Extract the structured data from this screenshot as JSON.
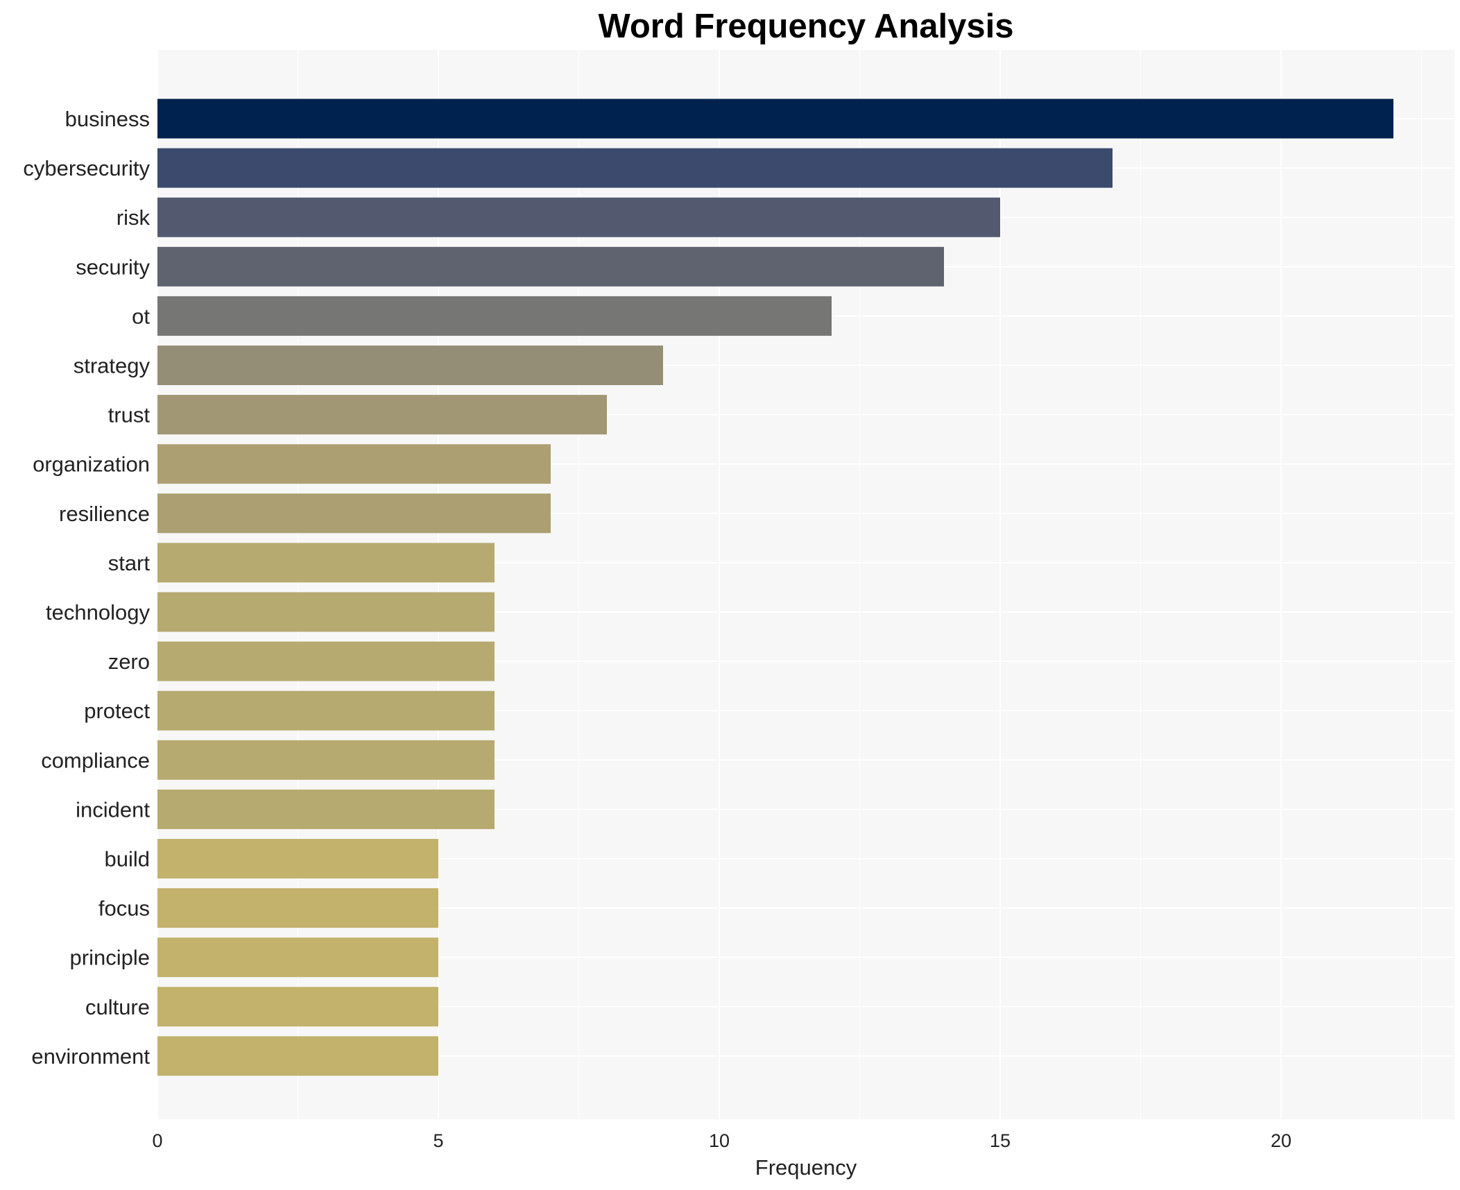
{
  "chart_data": {
    "type": "bar",
    "orientation": "horizontal",
    "title": "Word Frequency Analysis",
    "xlabel": "Frequency",
    "ylabel": "",
    "xlim": [
      0,
      23
    ],
    "xticks": [
      0,
      5,
      10,
      15,
      20
    ],
    "grid": true,
    "categories": [
      "business",
      "cybersecurity",
      "risk",
      "security",
      "ot",
      "strategy",
      "trust",
      "organization",
      "resilience",
      "start",
      "technology",
      "zero",
      "protect",
      "compliance",
      "incident",
      "build",
      "focus",
      "principle",
      "culture",
      "environment"
    ],
    "values": [
      22,
      17,
      15,
      14,
      12,
      9,
      8,
      7,
      7,
      6,
      6,
      6,
      6,
      6,
      6,
      5,
      5,
      5,
      5,
      5
    ],
    "colors": [
      "#00224e",
      "#3c4a6d",
      "#535a6f",
      "#5f6370",
      "#767674",
      "#958e77",
      "#a19774",
      "#aca073",
      "#aca073",
      "#b7aa71",
      "#b7aa71",
      "#b7aa71",
      "#b7aa71",
      "#b7aa71",
      "#b7aa71",
      "#c2b26b",
      "#c2b26b",
      "#c2b26b",
      "#c2b26b",
      "#c2b26b"
    ],
    "plot_background": "#f7f7f7"
  }
}
